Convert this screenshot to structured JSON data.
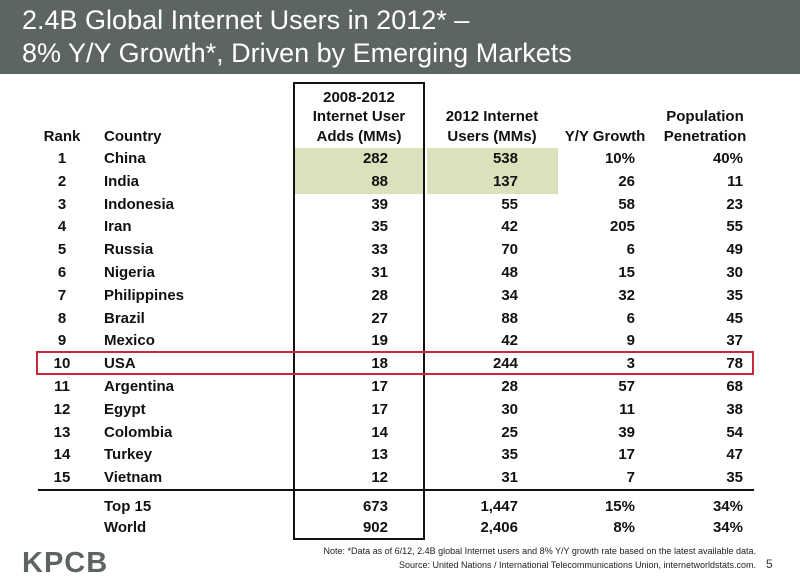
{
  "title": {
    "line1": "2.4B Global Internet Users in 2012* –",
    "line2": "8% Y/Y Growth*, Driven by Emerging Markets"
  },
  "headers": {
    "rank": "Rank",
    "country": "Country",
    "adds": [
      "2008-2012",
      "Internet User",
      "Adds (MMs)"
    ],
    "users": [
      "2012 Internet",
      "Users (MMs)"
    ],
    "growth": "Y/Y Growth",
    "penetration": [
      "Population",
      "Penetration"
    ]
  },
  "rows": [
    {
      "rank": "1",
      "country": "China",
      "adds": "282",
      "users": "538",
      "growth": "10%",
      "penetration": "40%"
    },
    {
      "rank": "2",
      "country": "India",
      "adds": "88",
      "users": "137",
      "growth": "26",
      "penetration": "11"
    },
    {
      "rank": "3",
      "country": "Indonesia",
      "adds": "39",
      "users": "55",
      "growth": "58",
      "penetration": "23"
    },
    {
      "rank": "4",
      "country": "Iran",
      "adds": "35",
      "users": "42",
      "growth": "205",
      "penetration": "55"
    },
    {
      "rank": "5",
      "country": "Russia",
      "adds": "33",
      "users": "70",
      "growth": "6",
      "penetration": "49"
    },
    {
      "rank": "6",
      "country": "Nigeria",
      "adds": "31",
      "users": "48",
      "growth": "15",
      "penetration": "30"
    },
    {
      "rank": "7",
      "country": "Philippines",
      "adds": "28",
      "users": "34",
      "growth": "32",
      "penetration": "35"
    },
    {
      "rank": "8",
      "country": "Brazil",
      "adds": "27",
      "users": "88",
      "growth": "6",
      "penetration": "45"
    },
    {
      "rank": "9",
      "country": "Mexico",
      "adds": "19",
      "users": "42",
      "growth": "9",
      "penetration": "37"
    },
    {
      "rank": "10",
      "country": "USA",
      "adds": "18",
      "users": "244",
      "growth": "3",
      "penetration": "78"
    },
    {
      "rank": "11",
      "country": "Argentina",
      "adds": "17",
      "users": "28",
      "growth": "57",
      "penetration": "68"
    },
    {
      "rank": "12",
      "country": "Egypt",
      "adds": "17",
      "users": "30",
      "growth": "11",
      "penetration": "38"
    },
    {
      "rank": "13",
      "country": "Colombia",
      "adds": "14",
      "users": "25",
      "growth": "39",
      "penetration": "54"
    },
    {
      "rank": "14",
      "country": "Turkey",
      "adds": "13",
      "users": "35",
      "growth": "17",
      "penetration": "47"
    },
    {
      "rank": "15",
      "country": "Vietnam",
      "adds": "12",
      "users": "31",
      "growth": "7",
      "penetration": "35"
    }
  ],
  "totals": [
    {
      "label": "Top 15",
      "adds": "673",
      "users": "1,447",
      "growth": "15%",
      "penetration": "34%"
    },
    {
      "label": "World",
      "adds": "902",
      "users": "2,406",
      "growth": "8%",
      "penetration": "34%"
    }
  ],
  "footer": {
    "logo": "KPCB",
    "note": "Note: *Data as of 6/12, 2.4B global Internet users and 8% Y/Y growth rate based on the latest available data.",
    "source": "Source: United Nations / International Telecommunications Union, internetworldstats.com.",
    "page": "5"
  },
  "colors": {
    "title_bar": "#5d6561",
    "highlight": "#dbe2bb",
    "usa_outline": "#c9283b"
  }
}
